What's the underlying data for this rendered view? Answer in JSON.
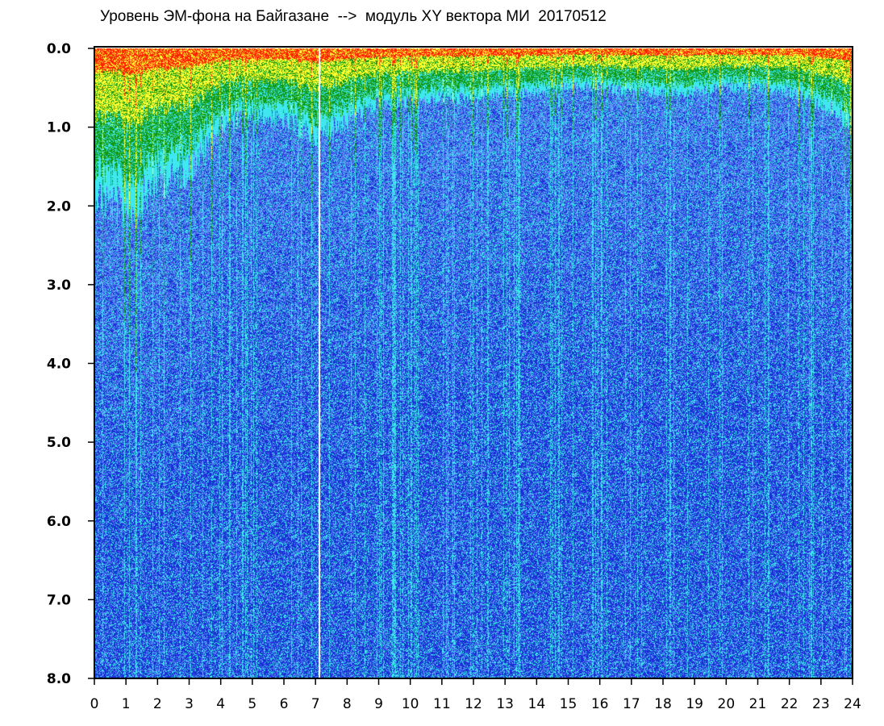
{
  "chart_data": {
    "type": "heatmap",
    "title": "Уровень ЭМ-фона на Байгазане  -->  модуль XY вектора МИ  20170512",
    "xlabel": "",
    "ylabel": "",
    "x_range": [
      0,
      24
    ],
    "y_range": [
      0,
      8
    ],
    "y_inverted": true,
    "grid": false,
    "x_ticks": [
      "0",
      "1",
      "2",
      "3",
      "4",
      "5",
      "6",
      "7",
      "8",
      "9",
      "10",
      "11",
      "12",
      "13",
      "14",
      "15",
      "16",
      "17",
      "18",
      "19",
      "20",
      "21",
      "22",
      "23",
      "24"
    ],
    "y_ticks": [
      "0.0",
      "1.0",
      "2.0",
      "3.0",
      "4.0",
      "5.0",
      "6.0",
      "7.0",
      "8.0"
    ],
    "colors": {
      "low": "#1a2fd6",
      "mid_low": "#5a7cf0",
      "mid": "#3ee8ee",
      "mid_high": "#139a13",
      "high": "#ffff30",
      "peak": "#ff2200",
      "frame": "#000000"
    },
    "activity_profile_hours": [
      0,
      1,
      2,
      3,
      4,
      5,
      6,
      7,
      8,
      9,
      10,
      11,
      12,
      13,
      14,
      15,
      16,
      17,
      18,
      19,
      20,
      21,
      22,
      23,
      24
    ],
    "activity_profile_depth": [
      2.6,
      3.0,
      2.4,
      2.2,
      1.4,
      1.2,
      1.3,
      1.6,
      1.3,
      1.0,
      1.0,
      0.9,
      0.9,
      0.8,
      0.8,
      0.7,
      0.7,
      0.8,
      0.8,
      0.8,
      0.7,
      0.7,
      0.8,
      1.0,
      1.4
    ],
    "gaps_hours": [
      7.1
    ]
  }
}
